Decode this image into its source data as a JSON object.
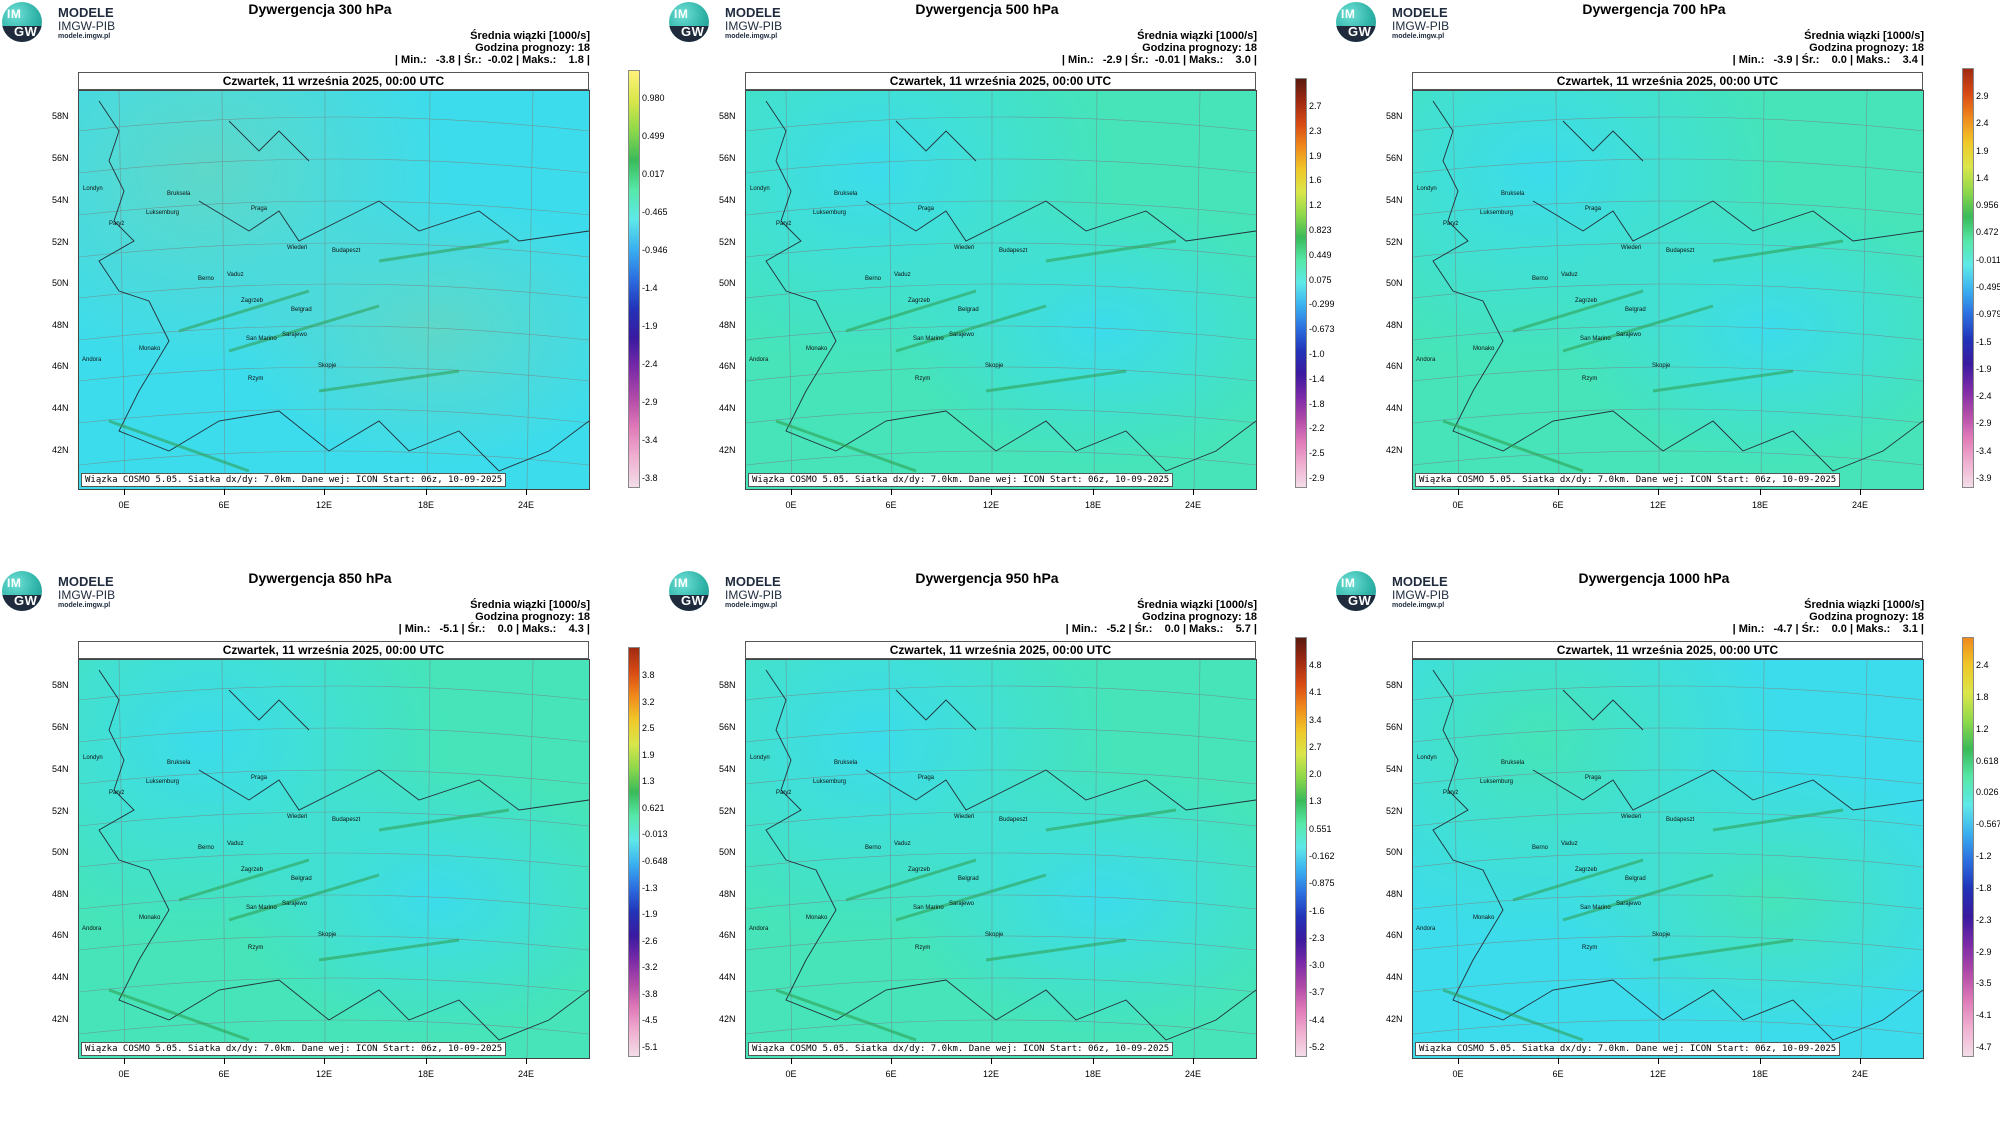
{
  "logo": {
    "badge_top": "IM",
    "badge_bottom": "GW",
    "brand": "MODELE",
    "org": "IMGW-PIB",
    "url": "modele.imgw.pl"
  },
  "common": {
    "mean_label": "Średnia wiązki [1000/s]",
    "lead_label": "Godzina prognozy: 18",
    "date": "Czwartek, 11 września 2025, 00:00 UTC",
    "footnote": "Wiązka COSMO 5.05. Siatka dx/dy: 7.0km. Dane wej: ICON Start: 06z, 10-09-2025",
    "lat_labels": [
      "58N",
      "56N",
      "54N",
      "52N",
      "50N",
      "48N",
      "46N",
      "44N",
      "42N"
    ],
    "lon_labels": [
      "0E",
      "6E",
      "12E",
      "18E",
      "24E"
    ],
    "cities": [
      "Londyn",
      "Paryż",
      "Luksemburg",
      "Bruksela",
      "Praga",
      "Wiedeń",
      "Budapeszt",
      "Berno",
      "Vaduz",
      "Zagrzeb",
      "Belgrad",
      "San Marino",
      "Sarajewo",
      "Andora",
      "Monako",
      "Rzym",
      "Skopje"
    ]
  },
  "panels": [
    {
      "title": "Dywergencja 300 hPa",
      "stats": "| Min.:   -3.8 | Śr.:  -0.02 | Maks.:    1.8 |",
      "colorbar": {
        "labels": [
          "0.980",
          "0.499",
          "0.017",
          "-0.465",
          "-0.946",
          "-1.4",
          "-1.9",
          "-2.4",
          "-2.9",
          "-3.4",
          "-3.8"
        ],
        "colors": [
          "#fff27a",
          "#d9e64a",
          "#8ed84a",
          "#3aba5a",
          "#55e8a8",
          "#5ee8e8",
          "#3ab0f0",
          "#2c6ee0",
          "#2233b8",
          "#3a1aa0",
          "#7a2aa8",
          "#b04aa8",
          "#e07ab8",
          "#f0b0d0",
          "#f3dde8"
        ]
      },
      "base": "#3cdcec",
      "accent": "#5ed8c8"
    },
    {
      "title": "Dywergencja 500 hPa",
      "stats": "| Min.:   -2.9 | Śr.:  -0.01 | Maks.:    3.0 |",
      "colorbar": {
        "labels": [
          "2.7",
          "2.3",
          "1.9",
          "1.6",
          "1.2",
          "0.823",
          "0.449",
          "0.075",
          "-0.299",
          "-0.673",
          "-1.0",
          "-1.4",
          "-1.8",
          "-2.2",
          "-2.5",
          "-2.9"
        ],
        "colors": [
          "#5a1a10",
          "#a02a12",
          "#d84a14",
          "#f08a1c",
          "#f0c828",
          "#d9e64a",
          "#8ed84a",
          "#3aba5a",
          "#55e8a8",
          "#5ee8e8",
          "#3ab0f0",
          "#2c6ee0",
          "#2233b8",
          "#3a1aa0",
          "#7a2aa8",
          "#b04aa8",
          "#e07ab8",
          "#f0b0d0",
          "#f3dde8"
        ]
      },
      "base": "#46e4b8",
      "accent": "#3cdcec"
    },
    {
      "title": "Dywergencja 700 hPa",
      "stats": "| Min.:   -3.9 | Śr.:    0.0 | Maks.:    3.4 |",
      "colorbar": {
        "labels": [
          "2.9",
          "2.4",
          "1.9",
          "1.4",
          "0.956",
          "0.472",
          "-0.011",
          "-0.495",
          "-0.979",
          "-1.5",
          "-1.9",
          "-2.4",
          "-2.9",
          "-3.4",
          "-3.9"
        ],
        "colors": [
          "#a02a12",
          "#d84a14",
          "#f08a1c",
          "#f0c828",
          "#d9e64a",
          "#8ed84a",
          "#3aba5a",
          "#55e8a8",
          "#5ee8e8",
          "#3ab0f0",
          "#2c6ee0",
          "#2233b8",
          "#3a1aa0",
          "#7a2aa8",
          "#b04aa8",
          "#e07ab8",
          "#f0b0d0",
          "#f3dde8"
        ]
      },
      "base": "#46e4b8",
      "accent": "#3cdcec"
    },
    {
      "title": "Dywergencja 850 hPa",
      "stats": "| Min.:   -5.1 | Śr.:    0.0 | Maks.:    4.3 |",
      "colorbar": {
        "labels": [
          "3.8",
          "3.2",
          "2.5",
          "1.9",
          "1.3",
          "0.621",
          "-0.013",
          "-0.648",
          "-1.3",
          "-1.9",
          "-2.6",
          "-3.2",
          "-3.8",
          "-4.5",
          "-5.1"
        ],
        "colors": [
          "#a02a12",
          "#d84a14",
          "#f08a1c",
          "#f0c828",
          "#d9e64a",
          "#8ed84a",
          "#3aba5a",
          "#55e8a8",
          "#5ee8e8",
          "#3ab0f0",
          "#2c6ee0",
          "#2233b8",
          "#3a1aa0",
          "#7a2aa8",
          "#b04aa8",
          "#e07ab8",
          "#f0b0d0",
          "#f3dde8"
        ]
      },
      "base": "#46e4b8",
      "accent": "#3cdcec"
    },
    {
      "title": "Dywergencja 950 hPa",
      "stats": "| Min.:   -5.2 | Śr.:    0.0 | Maks.:    5.7 |",
      "colorbar": {
        "labels": [
          "4.8",
          "4.1",
          "3.4",
          "2.7",
          "2.0",
          "1.3",
          "0.551",
          "-0.162",
          "-0.875",
          "-1.6",
          "-2.3",
          "-3.0",
          "-3.7",
          "-4.4",
          "-5.2"
        ],
        "colors": [
          "#5a1a10",
          "#a02a12",
          "#d84a14",
          "#f08a1c",
          "#f0c828",
          "#d9e64a",
          "#8ed84a",
          "#3aba5a",
          "#55e8a8",
          "#5ee8e8",
          "#3ab0f0",
          "#2c6ee0",
          "#2233b8",
          "#3a1aa0",
          "#7a2aa8",
          "#b04aa8",
          "#e07ab8",
          "#f0b0d0",
          "#f3dde8"
        ]
      },
      "base": "#46e4b8",
      "accent": "#3cdcec"
    },
    {
      "title": "Dywergencja 1000 hPa",
      "stats": "| Min.:   -4.7 | Śr.:    0.0 | Maks.:    3.1 |",
      "colorbar": {
        "labels": [
          "2.4",
          "1.8",
          "1.2",
          "0.618",
          "0.026",
          "-0.567",
          "-1.2",
          "-1.8",
          "-2.3",
          "-2.9",
          "-3.5",
          "-4.1",
          "-4.7"
        ],
        "colors": [
          "#f08a1c",
          "#f0c828",
          "#d9e64a",
          "#8ed84a",
          "#3aba5a",
          "#55e8a8",
          "#5ee8e8",
          "#3ab0f0",
          "#2c6ee0",
          "#2233b8",
          "#3a1aa0",
          "#7a2aa8",
          "#b04aa8",
          "#e07ab8",
          "#f0b0d0",
          "#f3dde8"
        ]
      },
      "base": "#3cdcec",
      "accent": "#46e4b8"
    }
  ]
}
